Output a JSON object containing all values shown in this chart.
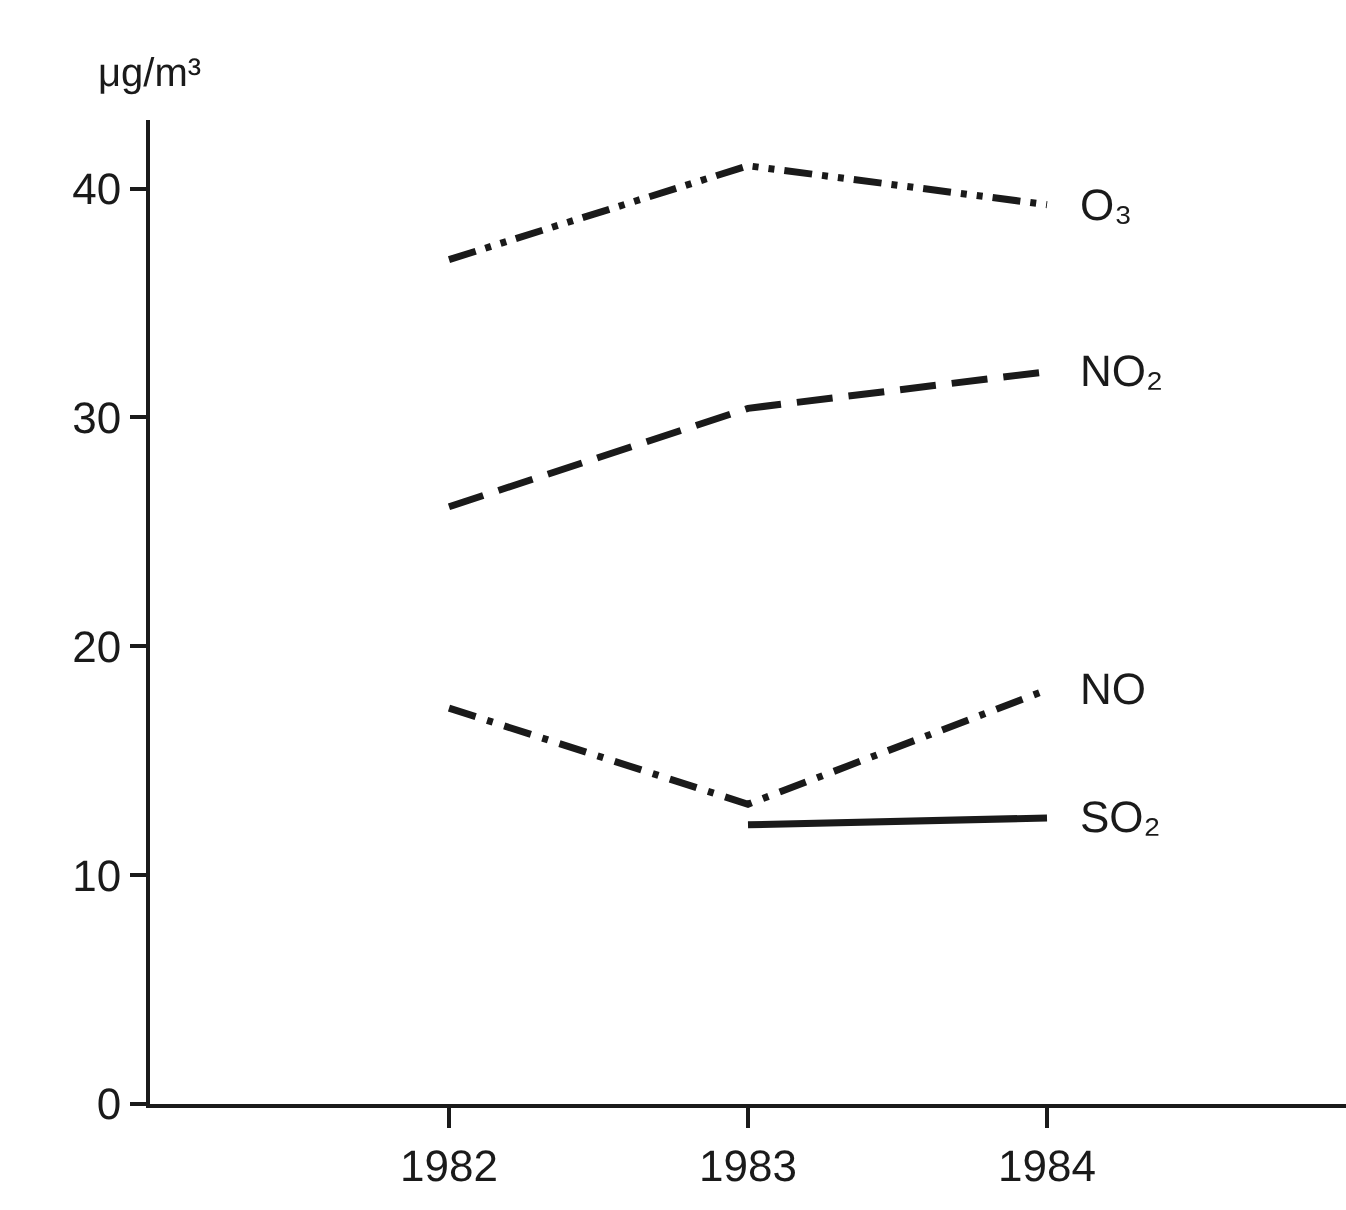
{
  "chart_data": {
    "type": "line",
    "ylabel": "μg/m³",
    "x": [
      1982,
      1983,
      1984
    ],
    "xlim": [
      1981,
      1985
    ],
    "xticks": [
      1982,
      1983,
      1984
    ],
    "ylim": [
      0,
      43
    ],
    "yticks": [
      0,
      10,
      20,
      30,
      40
    ],
    "grid": false,
    "legend": false,
    "marker": "none",
    "series": [
      {
        "name": "O₃",
        "color": "#1a1a1a",
        "line_style": "dashdotdot",
        "values": [
          36.9,
          41.0,
          39.3
        ]
      },
      {
        "name": "NO₂",
        "color": "#1a1a1a",
        "line_style": "dashed",
        "values": [
          26.1,
          30.4,
          32.0
        ]
      },
      {
        "name": "NO",
        "color": "#1a1a1a",
        "line_style": "dashdot",
        "values": [
          17.3,
          13.1,
          18.1
        ]
      },
      {
        "name": "SO₂",
        "color": "#1a1a1a",
        "line_style": "solid",
        "values": [
          null,
          12.2,
          12.5
        ]
      }
    ]
  }
}
